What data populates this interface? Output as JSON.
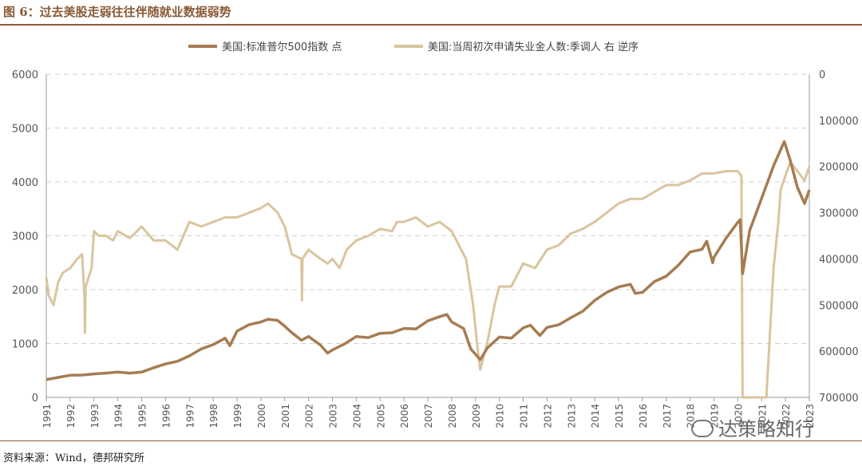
{
  "figure": {
    "title": "图 6：过去美股走弱往往伴随就业数据弱势",
    "source": "资料来源：Wind，德邦研究所",
    "watermark": "达策略知行"
  },
  "colors": {
    "sp500": "#a67c52",
    "claims": "#d9c59e",
    "grid": "#d0d0d0",
    "axis": "#999999",
    "accent": "#8a5a35"
  },
  "chart_data": {
    "type": "line",
    "title": "",
    "legend": [
      "美国:标准普尔500指数 点",
      "美国:当周初次申请失业金人数:季调人 右 逆序"
    ],
    "legend_position": "top",
    "grid": true,
    "x_ticks": [
      "1991",
      "1992",
      "1993",
      "1994",
      "1995",
      "1996",
      "1997",
      "1998",
      "1999",
      "2000",
      "2001",
      "2002",
      "2003",
      "2004",
      "2005",
      "2006",
      "2007",
      "2008",
      "2009",
      "2010",
      "2011",
      "2012",
      "2013",
      "2014",
      "2015",
      "2016",
      "2017",
      "2018",
      "2019",
      "2020",
      "2021",
      "2022",
      "2023"
    ],
    "xlim": [
      1991,
      2023
    ],
    "y_left": {
      "lim": [
        0,
        6000
      ],
      "ticks": [
        "0",
        "1000",
        "2000",
        "3000",
        "4000",
        "5000",
        "6000"
      ]
    },
    "y_right": {
      "lim": [
        0,
        700000
      ],
      "inverted": true,
      "ticks": [
        "0",
        "100000",
        "200000",
        "300000",
        "400000",
        "500000",
        "600000",
        "700000"
      ]
    },
    "series": [
      {
        "name": "美国:标准普尔500指数 点",
        "axis": "left",
        "x": [
          1991.0,
          1991.5,
          1992.0,
          1992.5,
          1993.0,
          1993.5,
          1994.0,
          1994.5,
          1995.0,
          1995.5,
          1996.0,
          1996.5,
          1997.0,
          1997.5,
          1998.0,
          1998.5,
          1998.7,
          1999.0,
          1999.5,
          2000.0,
          2000.3,
          2000.7,
          2001.0,
          2001.3,
          2001.7,
          2002.0,
          2002.5,
          2002.8,
          2003.0,
          2003.5,
          2004.0,
          2004.5,
          2005.0,
          2005.5,
          2006.0,
          2006.5,
          2007.0,
          2007.5,
          2007.8,
          2008.0,
          2008.5,
          2008.8,
          2009.0,
          2009.2,
          2009.5,
          2010.0,
          2010.5,
          2011.0,
          2011.3,
          2011.7,
          2012.0,
          2012.5,
          2013.0,
          2013.5,
          2014.0,
          2014.5,
          2015.0,
          2015.5,
          2015.7,
          2016.0,
          2016.5,
          2017.0,
          2017.5,
          2018.0,
          2018.5,
          2018.7,
          2018.95,
          2019.0,
          2019.5,
          2020.0,
          2020.1,
          2020.2,
          2020.5,
          2021.0,
          2021.5,
          2021.95,
          2022.2,
          2022.5,
          2022.8,
          2023.0
        ],
        "values": [
          330,
          370,
          410,
          415,
          435,
          450,
          470,
          450,
          470,
          550,
          620,
          670,
          770,
          900,
          980,
          1100,
          960,
          1230,
          1350,
          1400,
          1450,
          1430,
          1320,
          1200,
          1060,
          1130,
          970,
          820,
          880,
          990,
          1130,
          1110,
          1190,
          1200,
          1280,
          1270,
          1420,
          1500,
          1540,
          1400,
          1280,
          900,
          800,
          700,
          920,
          1120,
          1100,
          1290,
          1340,
          1150,
          1300,
          1350,
          1480,
          1600,
          1800,
          1950,
          2050,
          2100,
          1930,
          1950,
          2150,
          2250,
          2450,
          2700,
          2750,
          2900,
          2500,
          2600,
          2950,
          3250,
          3300,
          2300,
          3100,
          3700,
          4300,
          4750,
          4400,
          3900,
          3600,
          3850
        ]
      },
      {
        "name": "美国:当周初次申请失业金人数:季调人 右 逆序",
        "axis": "right",
        "x": [
          1991.0,
          1991.1,
          1991.3,
          1991.5,
          1991.7,
          1992.0,
          1992.3,
          1992.5,
          1992.6,
          1992.62,
          1992.65,
          1992.9,
          1993.0,
          1993.2,
          1993.5,
          1993.8,
          1994.0,
          1994.5,
          1995.0,
          1995.5,
          1996.0,
          1996.5,
          1997.0,
          1997.5,
          1998.0,
          1998.5,
          1999.0,
          1999.5,
          2000.0,
          2000.3,
          2000.7,
          2001.0,
          2001.3,
          2001.7,
          2001.72,
          2001.74,
          2002.0,
          2002.5,
          2002.8,
          2003.0,
          2003.3,
          2003.6,
          2004.0,
          2004.5,
          2005.0,
          2005.5,
          2005.7,
          2006.0,
          2006.5,
          2007.0,
          2007.5,
          2008.0,
          2008.3,
          2008.6,
          2008.9,
          2009.1,
          2009.2,
          2009.5,
          2009.8,
          2010.0,
          2010.5,
          2011.0,
          2011.5,
          2012.0,
          2012.5,
          2013.0,
          2013.5,
          2014.0,
          2014.5,
          2015.0,
          2015.5,
          2016.0,
          2016.5,
          2017.0,
          2017.5,
          2018.0,
          2018.5,
          2019.0,
          2019.5,
          2020.0,
          2020.15,
          2020.2,
          2020.25,
          2020.3,
          2021.0,
          2021.1,
          2021.2,
          2021.5,
          2021.7,
          2021.8,
          2022.0,
          2022.2,
          2022.5,
          2022.8,
          2023.0
        ],
        "values": [
          440000,
          480000,
          500000,
          450000,
          430000,
          420000,
          400000,
          390000,
          480000,
          560000,
          460000,
          420000,
          340000,
          350000,
          350000,
          360000,
          340000,
          355000,
          330000,
          360000,
          360000,
          380000,
          320000,
          330000,
          320000,
          310000,
          310000,
          300000,
          290000,
          280000,
          300000,
          330000,
          390000,
          400000,
          490000,
          400000,
          380000,
          400000,
          410000,
          400000,
          420000,
          380000,
          360000,
          350000,
          335000,
          340000,
          320000,
          320000,
          310000,
          330000,
          320000,
          340000,
          370000,
          400000,
          500000,
          600000,
          640000,
          580000,
          500000,
          460000,
          460000,
          410000,
          420000,
          380000,
          370000,
          345000,
          335000,
          320000,
          300000,
          280000,
          270000,
          270000,
          255000,
          240000,
          240000,
          230000,
          215000,
          215000,
          210000,
          210000,
          220000,
          700000,
          700000,
          700000,
          700000,
          700000,
          700000,
          420000,
          320000,
          250000,
          220000,
          190000,
          210000,
          230000,
          200000
        ]
      }
    ]
  }
}
